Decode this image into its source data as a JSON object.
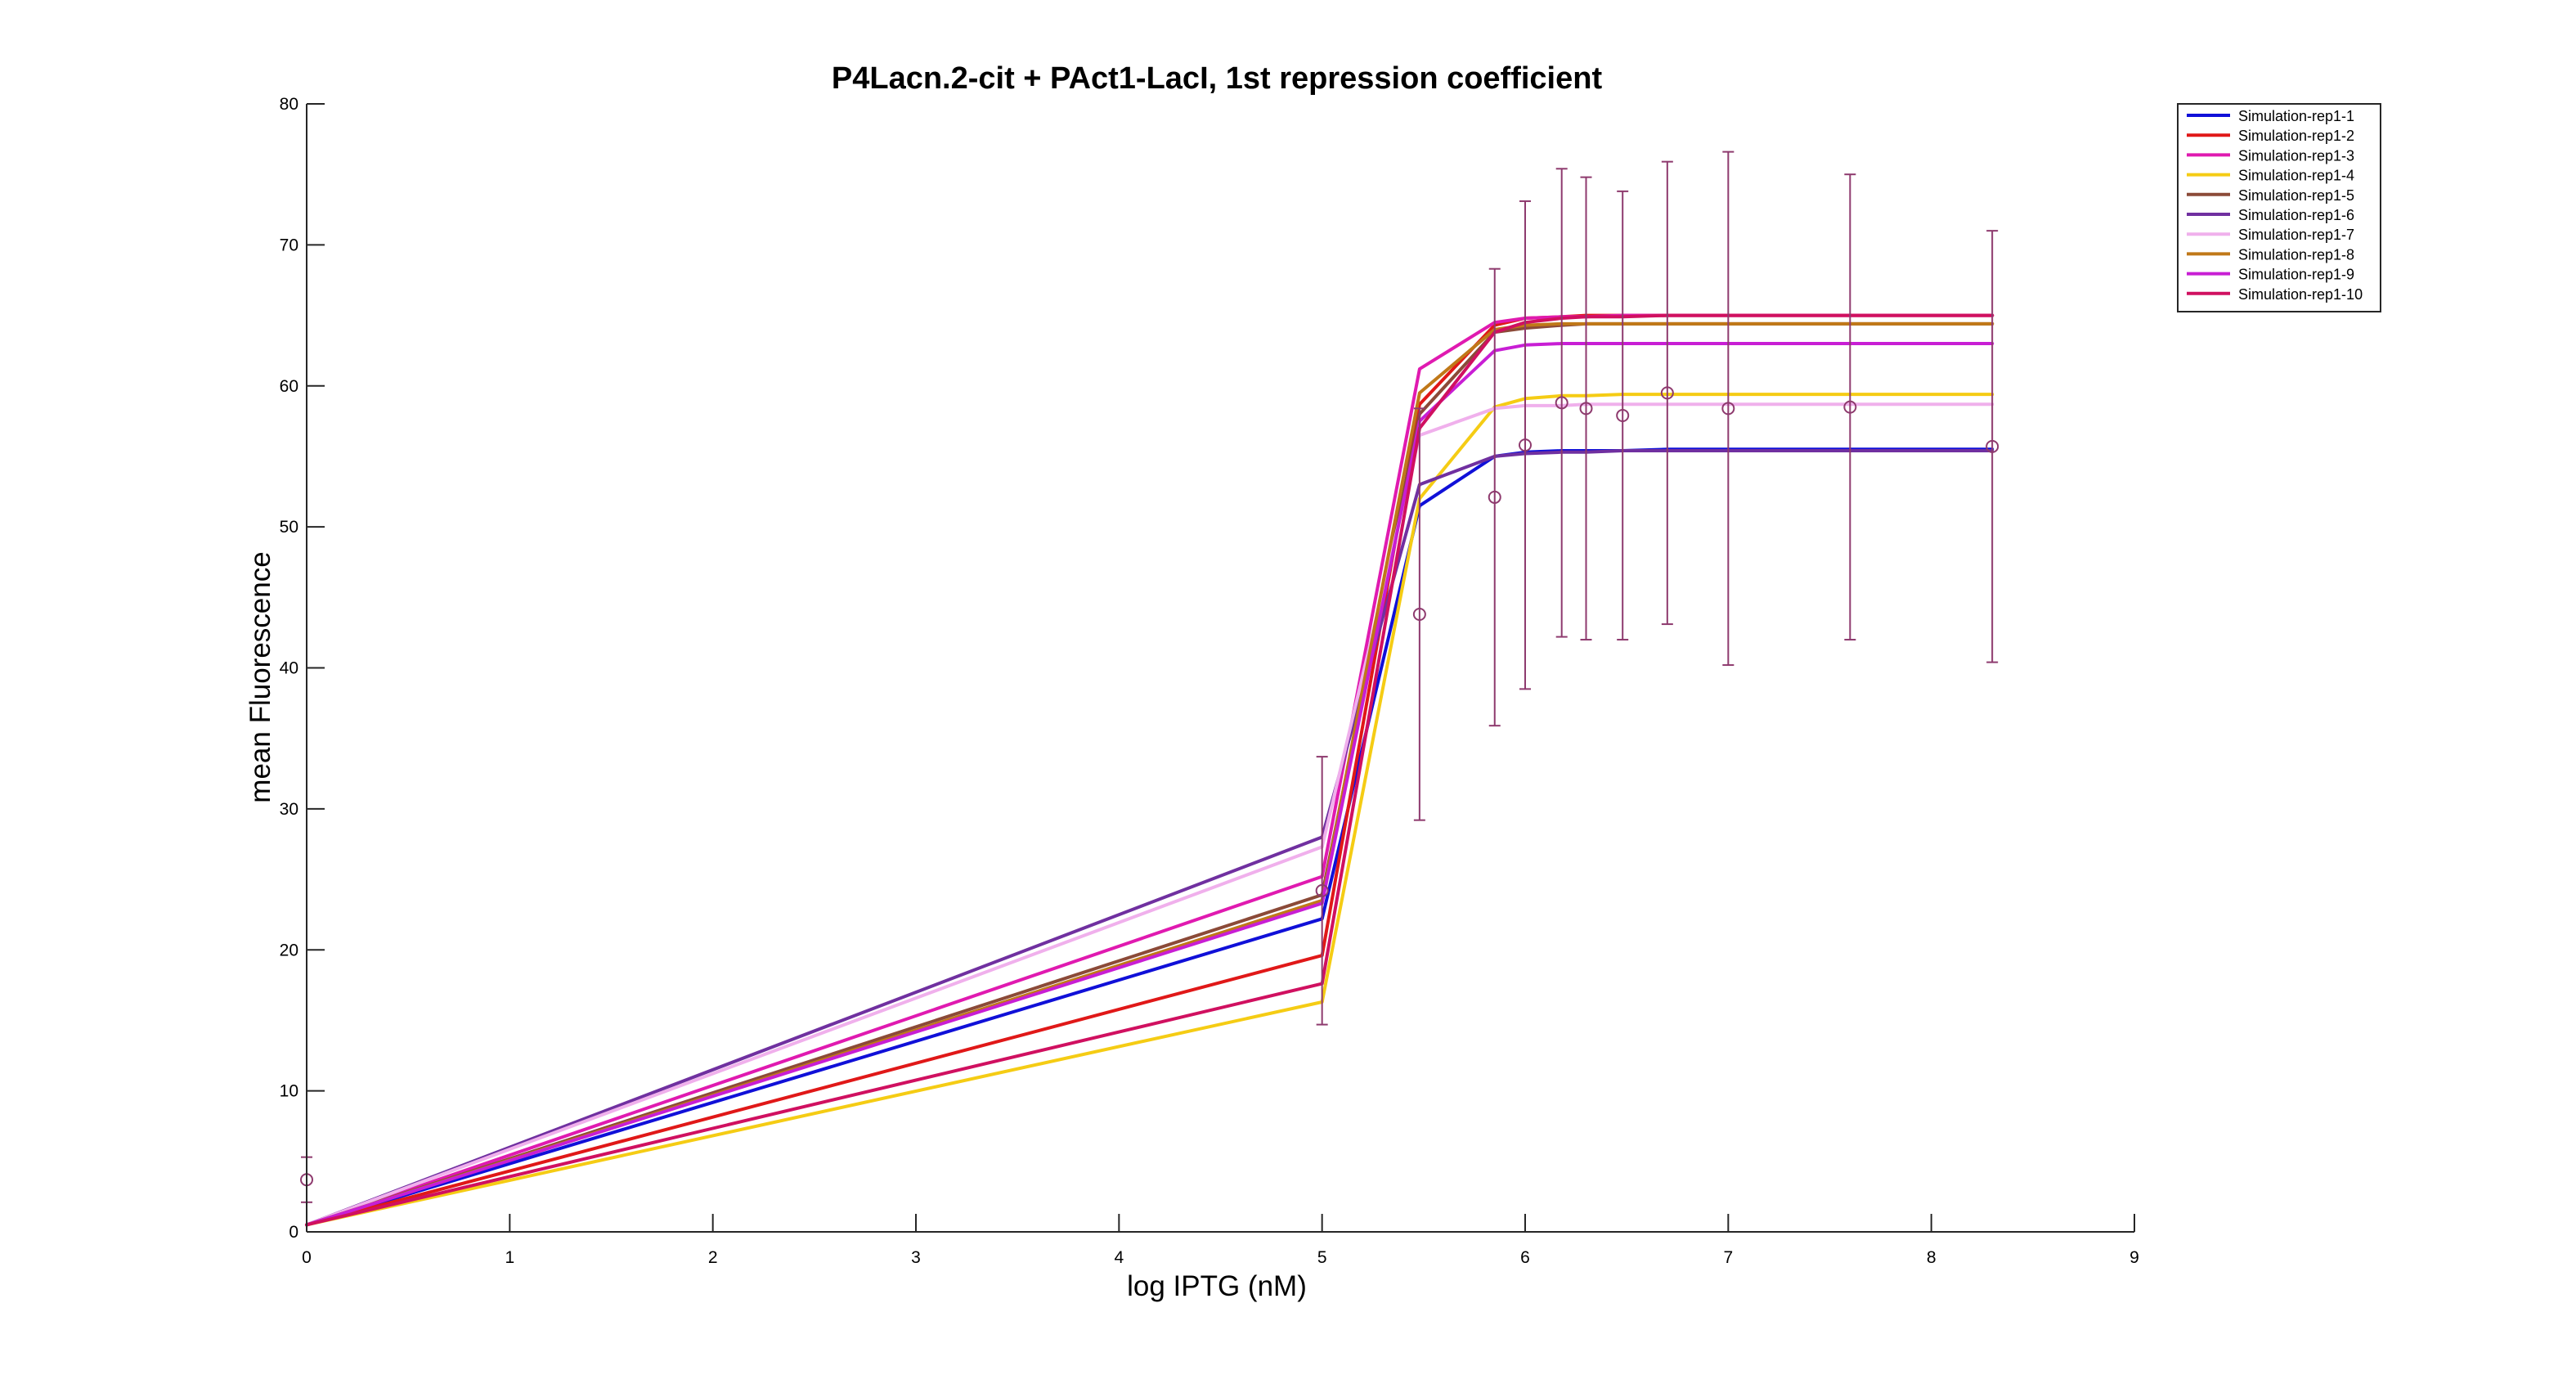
{
  "chart_data": {
    "type": "line",
    "title": "P4Lacn.2-cit + PAct1-LacI, 1st repression coefficient",
    "xlabel": "log IPTG (nM)",
    "ylabel": "mean Fluorescence",
    "xlim": [
      0,
      9
    ],
    "ylim": [
      0,
      80
    ],
    "xticks": [
      "0",
      "1",
      "2",
      "3",
      "4",
      "5",
      "6",
      "7",
      "8",
      "9"
    ],
    "yticks": [
      "0",
      "10",
      "20",
      "30",
      "40",
      "50",
      "60",
      "70",
      "80"
    ],
    "grid": false,
    "legend_position": "top-right",
    "x": [
      0,
      5,
      5.48,
      5.85,
      6,
      6.18,
      6.3,
      6.48,
      6.7,
      7,
      7.6,
      8.3
    ],
    "series": [
      {
        "name": "Simulation-rep1-1",
        "color": "#1010d8",
        "values": [
          0.5,
          22.2,
          51.5,
          55.0,
          55.3,
          55.4,
          55.4,
          55.4,
          55.5,
          55.5,
          55.5,
          55.5
        ]
      },
      {
        "name": "Simulation-rep1-2",
        "color": "#e01818",
        "values": [
          0.5,
          19.6,
          58.7,
          64.3,
          64.8,
          64.9,
          65.0,
          65.0,
          65.0,
          65.0,
          65.0,
          65.0
        ]
      },
      {
        "name": "Simulation-rep1-3",
        "color": "#e01ab0",
        "values": [
          0.5,
          25.2,
          61.2,
          64.5,
          64.8,
          64.9,
          64.9,
          65.0,
          65.0,
          65.0,
          65.0,
          65.0
        ]
      },
      {
        "name": "Simulation-rep1-4",
        "color": "#f5cc14",
        "values": [
          0.5,
          16.3,
          52.0,
          58.5,
          59.1,
          59.3,
          59.3,
          59.4,
          59.4,
          59.4,
          59.4,
          59.4
        ]
      },
      {
        "name": "Simulation-rep1-5",
        "color": "#8b4a38",
        "values": [
          0.5,
          23.9,
          58.0,
          63.8,
          64.1,
          64.3,
          64.4,
          64.4,
          64.4,
          64.4,
          64.4,
          64.4
        ]
      },
      {
        "name": "Simulation-rep1-6",
        "color": "#7030a0",
        "values": [
          0.5,
          28.0,
          53.0,
          55.0,
          55.2,
          55.3,
          55.3,
          55.4,
          55.4,
          55.4,
          55.4,
          55.4
        ]
      },
      {
        "name": "Simulation-rep1-7",
        "color": "#f0b0ec",
        "values": [
          0.5,
          27.3,
          56.5,
          58.4,
          58.6,
          58.6,
          58.7,
          58.7,
          58.7,
          58.7,
          58.7,
          58.7
        ]
      },
      {
        "name": "Simulation-rep1-8",
        "color": "#c07818",
        "values": [
          0.5,
          23.5,
          59.5,
          64.0,
          64.3,
          64.4,
          64.4,
          64.4,
          64.4,
          64.4,
          64.4,
          64.4
        ]
      },
      {
        "name": "Simulation-rep1-9",
        "color": "#c81ed4",
        "values": [
          0.5,
          23.3,
          57.5,
          62.5,
          62.9,
          63.0,
          63.0,
          63.0,
          63.0,
          63.0,
          63.0,
          63.0
        ]
      },
      {
        "name": "Simulation-rep1-10",
        "color": "#d01060",
        "values": [
          0.5,
          17.6,
          57.0,
          63.8,
          64.5,
          64.8,
          64.9,
          64.9,
          65.0,
          65.0,
          65.0,
          65.0
        ]
      }
    ],
    "experimental_data": {
      "color": "#8e3a6e",
      "points": [
        {
          "x": 0,
          "y": 3.7,
          "lower": 2.1,
          "upper": 5.3
        },
        {
          "x": 5,
          "y": 24.2,
          "lower": 14.7,
          "upper": 33.7
        },
        {
          "x": 5.48,
          "y": 43.8,
          "lower": 29.2,
          "upper": 58.4
        },
        {
          "x": 5.85,
          "y": 52.1,
          "lower": 35.9,
          "upper": 68.3
        },
        {
          "x": 6,
          "y": 55.8,
          "lower": 38.5,
          "upper": 73.1
        },
        {
          "x": 6.18,
          "y": 58.8,
          "lower": 42.2,
          "upper": 75.4
        },
        {
          "x": 6.3,
          "y": 58.4,
          "lower": 42.0,
          "upper": 74.8
        },
        {
          "x": 6.48,
          "y": 57.9,
          "lower": 42.0,
          "upper": 73.8
        },
        {
          "x": 6.7,
          "y": 59.5,
          "lower": 43.1,
          "upper": 75.9
        },
        {
          "x": 7,
          "y": 58.4,
          "lower": 40.2,
          "upper": 76.6
        },
        {
          "x": 7.6,
          "y": 58.5,
          "lower": 42.0,
          "upper": 75.0
        },
        {
          "x": 8.3,
          "y": 55.7,
          "lower": 40.4,
          "upper": 71.0
        }
      ]
    }
  }
}
